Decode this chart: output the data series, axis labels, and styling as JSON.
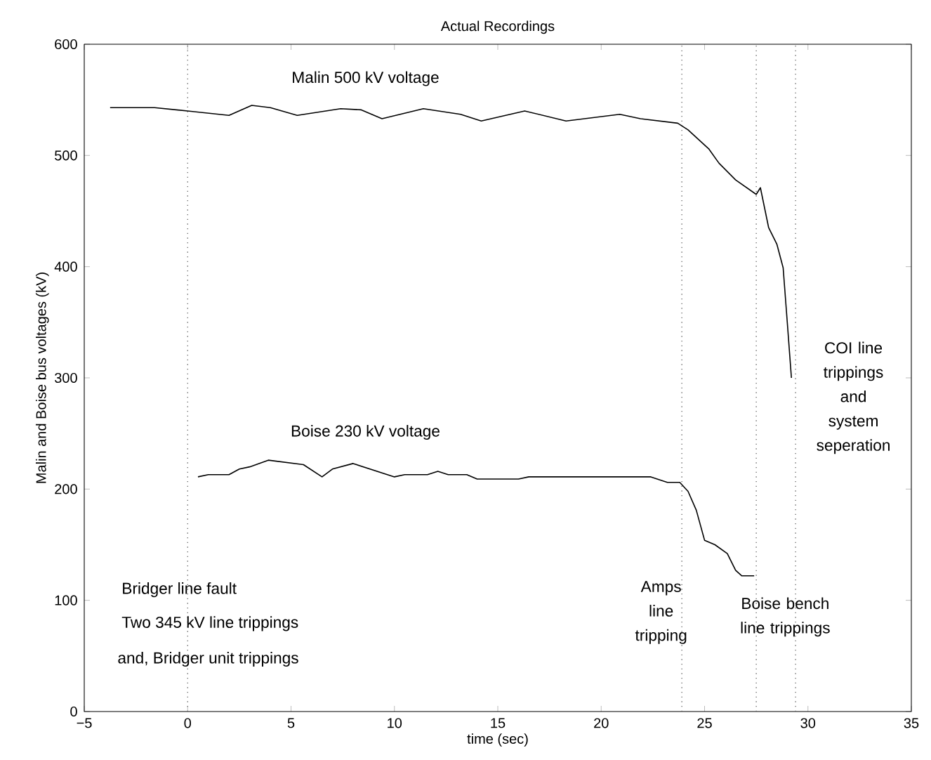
{
  "chart_data": {
    "type": "line",
    "title": "Actual Recordings",
    "xlabel": "time (sec)",
    "ylabel": "Malin and Boise bus voltages (kV)",
    "xlim": [
      -5,
      35
    ],
    "ylim": [
      0,
      600
    ],
    "xticks": [
      {
        "value": -5,
        "label": "−5"
      },
      0,
      5,
      10,
      15,
      20,
      25,
      30,
      35
    ],
    "yticks": [
      0,
      100,
      200,
      300,
      400,
      500,
      600
    ],
    "series": [
      {
        "name": "Malin 500 kV voltage",
        "color": "#000000",
        "x": [
          -3.75,
          -1.6,
          0.0,
          2.0,
          3.1,
          4.0,
          5.3,
          7.4,
          8.4,
          9.4,
          11.4,
          13.2,
          14.2,
          16.3,
          18.3,
          20.9,
          21.9,
          23.7,
          24.2,
          25.2,
          25.7,
          26.5,
          27.5,
          27.7,
          28.1,
          28.5,
          28.8,
          29.0,
          29.2
        ],
        "values": [
          543,
          543,
          540,
          536,
          545,
          543,
          536,
          542,
          541,
          533,
          542,
          537,
          531,
          540,
          531,
          537,
          533,
          529,
          523,
          506,
          493,
          478,
          465,
          471,
          435,
          420,
          399,
          350,
          300
        ]
      },
      {
        "name": "Boise 230 kV voltage",
        "color": "#000000",
        "x": [
          0.5,
          1.0,
          2.0,
          2.5,
          3.0,
          3.9,
          5.6,
          6.5,
          7.0,
          8.0,
          10.0,
          10.5,
          11.6,
          12.1,
          12.6,
          13.5,
          14.0,
          16.0,
          16.5,
          22.4,
          23.2,
          23.8,
          24.2,
          24.6,
          25.0,
          25.5,
          26.1,
          26.5,
          26.8,
          27.4
        ],
        "values": [
          211,
          213,
          213,
          218,
          220,
          226,
          222,
          211,
          218,
          223,
          211,
          213,
          213,
          216,
          213,
          213,
          209,
          209,
          211,
          211,
          206,
          206,
          198,
          181,
          154,
          150,
          142,
          127,
          122,
          122
        ]
      }
    ],
    "ref_lines": [
      {
        "axis": "x",
        "value": 0,
        "color": "#666666",
        "line_style": "dotted"
      },
      {
        "axis": "x",
        "value": 23.9,
        "color": "#666666",
        "line_style": "dotted"
      },
      {
        "axis": "x",
        "value": 27.5,
        "color": "#666666",
        "line_style": "dotted"
      },
      {
        "axis": "x",
        "value": 29.4,
        "color": "#666666",
        "line_style": "dotted"
      }
    ],
    "annotations": [
      "Bridger line fault",
      "Two 345 kV line trippings",
      "and, Bridger unit trippings",
      "Amps line tripping",
      "Boise bench line trippings",
      "COI line trippings and system seperation"
    ]
  }
}
